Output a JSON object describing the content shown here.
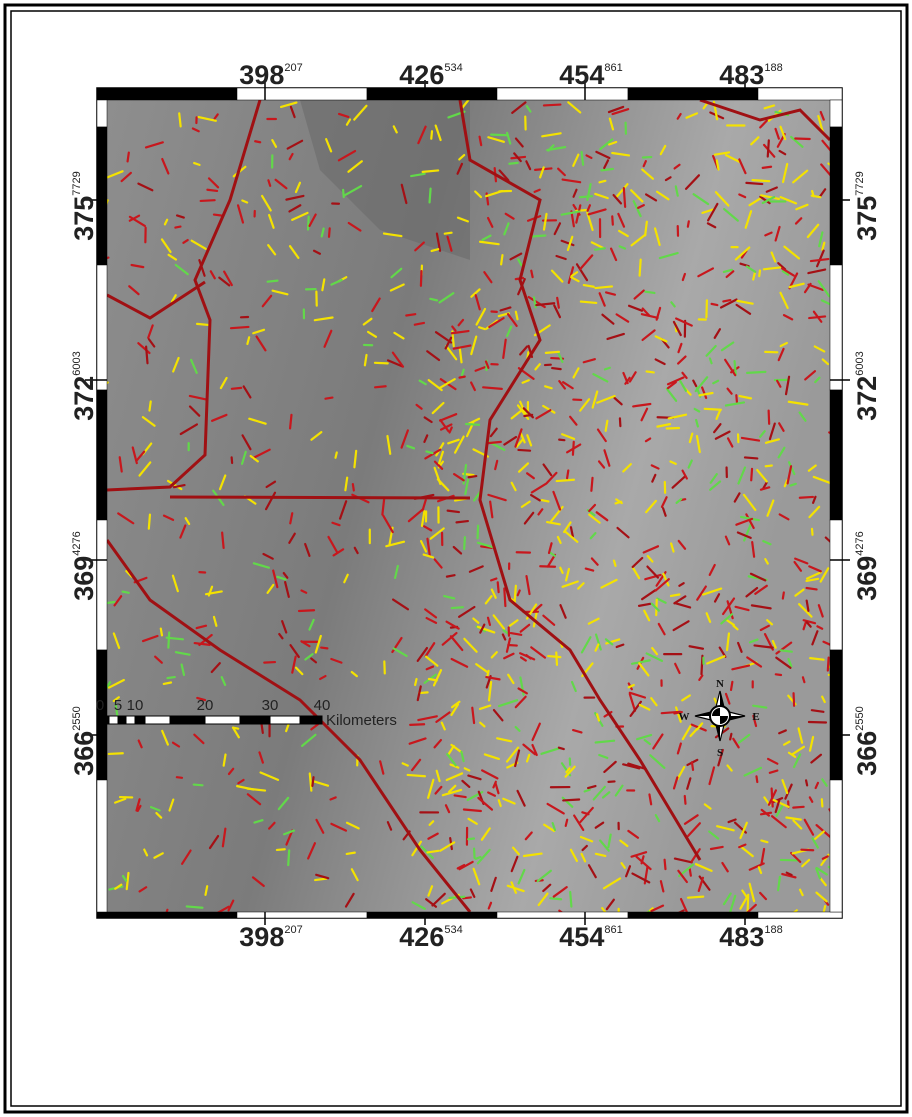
{
  "map": {
    "top_labels": [
      {
        "main": "398",
        "sup": "207"
      },
      {
        "main": "426",
        "sup": "534"
      },
      {
        "main": "454",
        "sup": "861"
      },
      {
        "main": "483",
        "sup": "188"
      }
    ],
    "bottom_labels": [
      {
        "main": "398",
        "sup": "207"
      },
      {
        "main": "426",
        "sup": "534"
      },
      {
        "main": "454",
        "sup": "861"
      },
      {
        "main": "483",
        "sup": "188"
      }
    ],
    "left_labels": [
      {
        "main": "375",
        "sup": "7729"
      },
      {
        "main": "372",
        "sup": "6003"
      },
      {
        "main": "369",
        "sup": "4276"
      },
      {
        "main": "366",
        "sup": "2550"
      }
    ],
    "right_labels": [
      {
        "main": "375",
        "sup": "7729"
      },
      {
        "main": "372",
        "sup": "6003"
      },
      {
        "main": "369",
        "sup": "4276"
      },
      {
        "main": "366",
        "sup": "2550"
      }
    ],
    "scale_bar": {
      "ticks": [
        "0",
        "5",
        "10",
        "20",
        "30",
        "40"
      ],
      "unit": "Kilometers"
    },
    "north_arrow": {
      "n": "N",
      "e": "E",
      "s": "S",
      "w": "W"
    }
  }
}
